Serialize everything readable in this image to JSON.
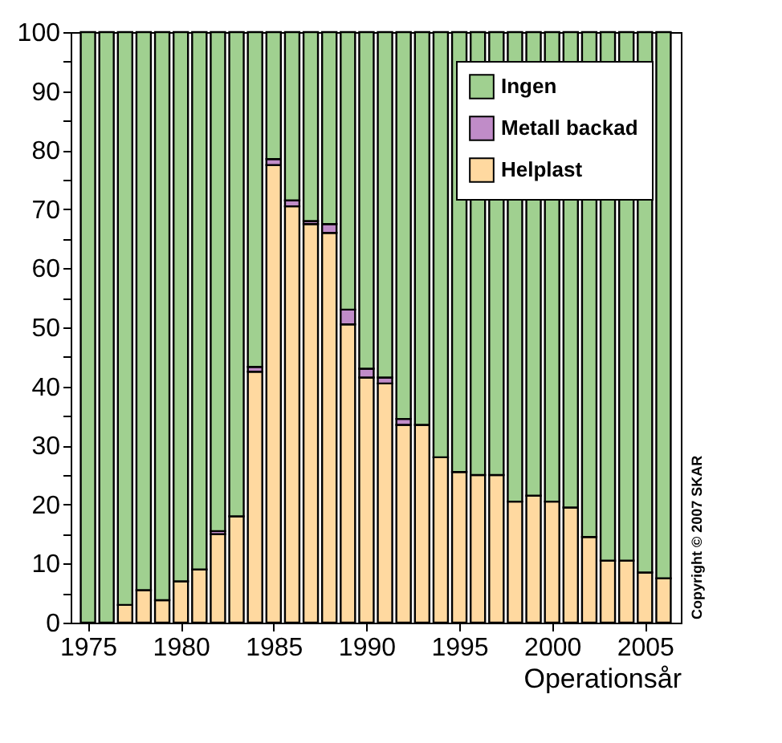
{
  "chart_data": {
    "type": "bar",
    "stacked": true,
    "xlabel": "Operationsår",
    "x": [
      1975,
      1976,
      1977,
      1978,
      1979,
      1980,
      1981,
      1982,
      1983,
      1984,
      1985,
      1986,
      1987,
      1988,
      1989,
      1990,
      1991,
      1992,
      1993,
      1994,
      1995,
      1996,
      1997,
      1998,
      1999,
      2000,
      2001,
      2002,
      2003,
      2004,
      2005,
      2006
    ],
    "series": [
      {
        "name": "Helplast",
        "color": "#ffd9a0",
        "values": [
          0,
          0,
          3,
          5.5,
          3.8,
          7,
          9,
          15,
          18,
          42.5,
          77.5,
          70.5,
          67.5,
          66,
          50.5,
          41.5,
          40.5,
          33.5,
          33.5,
          28,
          25.5,
          25,
          25,
          20.5,
          21.5,
          20.5,
          19.5,
          14.5,
          10.5,
          10.5,
          8.5,
          7.5
        ]
      },
      {
        "name": "Metall backad",
        "color": "#c08cc8",
        "values": [
          0,
          0,
          0,
          0,
          0,
          0,
          0,
          0.5,
          0,
          0.8,
          1,
          1,
          0.5,
          1.5,
          2.5,
          1.5,
          1,
          1,
          0,
          0,
          0,
          0,
          0,
          0,
          0,
          0,
          0,
          0,
          0,
          0,
          0,
          0
        ]
      },
      {
        "name": "Ingen",
        "color": "#a0d090",
        "values": [
          100,
          100,
          97,
          94.5,
          96.2,
          93,
          91,
          84.5,
          82,
          56.7,
          21.5,
          28.5,
          32,
          32.5,
          47,
          57,
          58.5,
          65.5,
          66.5,
          72,
          74.5,
          75,
          75,
          79.5,
          78.5,
          79.5,
          80.5,
          85.5,
          89.5,
          89.5,
          91.5,
          92.5
        ]
      }
    ],
    "xlim": [
      1974.5,
      2006.5
    ],
    "xticks": [
      1975,
      1980,
      1985,
      1990,
      1995,
      2000,
      2005
    ],
    "ylim": [
      0,
      100
    ],
    "yticks": [
      0,
      {
        "value": 5,
        "label": null
      },
      10,
      {
        "value": 15,
        "label": null
      },
      20,
      {
        "value": 25,
        "label": null
      },
      30,
      {
        "value": 35,
        "label": null
      },
      40,
      {
        "value": 45,
        "label": null
      },
      50,
      {
        "value": 55,
        "label": null
      },
      60,
      {
        "value": 65,
        "label": null
      },
      70,
      {
        "value": 75,
        "label": null
      },
      80,
      {
        "value": 85,
        "label": null
      },
      90,
      {
        "value": 95,
        "label": null
      },
      100
    ],
    "legend": "top right",
    "annotations": [
      "Copyright © 2007 SKAR"
    ]
  }
}
